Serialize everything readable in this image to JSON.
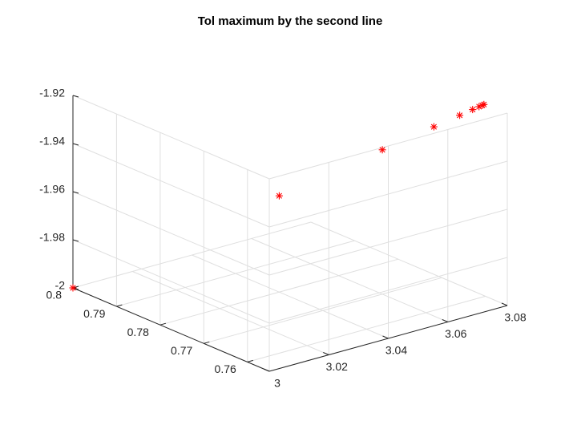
{
  "chart_data": {
    "type": "scatter",
    "title": "Tol maximum by the second line",
    "xlabel": "",
    "ylabel": "",
    "zlabel": "",
    "marker": "asterisk",
    "marker_color": "#ff0000",
    "grid": true,
    "x_axis": {
      "range": [
        3,
        3.08
      ],
      "ticks": [
        3,
        3.02,
        3.04,
        3.06,
        3.08
      ],
      "tick_labels": [
        "3",
        "3.02",
        "3.04",
        "3.06",
        "3.08"
      ]
    },
    "y_axis": {
      "range": [
        0.755,
        0.8
      ],
      "ticks": [
        0.76,
        0.77,
        0.78,
        0.79,
        0.8
      ],
      "tick_labels": [
        "0.76",
        "0.77",
        "0.78",
        "0.79",
        "0.8"
      ]
    },
    "z_axis": {
      "range": [
        -2,
        -1.92
      ],
      "ticks": [
        -2,
        -1.98,
        -1.96,
        -1.94,
        -1.92
      ],
      "tick_labels": [
        "-2",
        "-1.98",
        "-1.96",
        "-1.94",
        "-1.92"
      ]
    },
    "points": [
      {
        "x": 3.0,
        "y": 0.8,
        "z": -2.0
      },
      {
        "x": 3.04,
        "y": 0.78,
        "z": -1.96
      },
      {
        "x": 3.06,
        "y": 0.77,
        "z": -1.94
      },
      {
        "x": 3.07,
        "y": 0.765,
        "z": -1.93
      },
      {
        "x": 3.075,
        "y": 0.7625,
        "z": -1.925
      },
      {
        "x": 3.0775,
        "y": 0.76125,
        "z": -1.9225
      },
      {
        "x": 3.07875,
        "y": 0.760625,
        "z": -1.92125
      },
      {
        "x": 3.079375,
        "y": 0.7603,
        "z": -1.92063
      },
      {
        "x": 3.0797,
        "y": 0.76016,
        "z": -1.92031
      }
    ]
  }
}
